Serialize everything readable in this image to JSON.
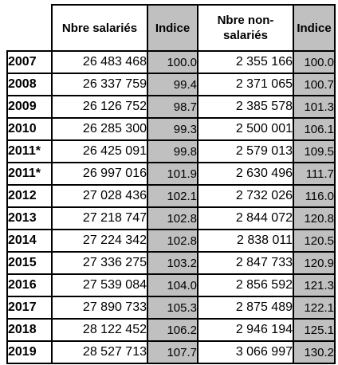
{
  "table": {
    "headers": {
      "year": "",
      "salaried": "Nbre salariés",
      "salaried_index": "Indice",
      "non_salaried": "Nbre non-salariés",
      "non_salaried_index": "Indice"
    },
    "rows": [
      {
        "year": "2007",
        "salaried": "26 483 468",
        "salaried_index": "100.0",
        "non_salaried": "2 355 166",
        "non_salaried_index": "100.0"
      },
      {
        "year": "2008",
        "salaried": "26 337 759",
        "salaried_index": "99.4",
        "non_salaried": "2 371 065",
        "non_salaried_index": "100.7"
      },
      {
        "year": "2009",
        "salaried": "26 126 752",
        "salaried_index": "98.7",
        "non_salaried": "2 385 578",
        "non_salaried_index": "101.3"
      },
      {
        "year": "2010",
        "salaried": "26 285 300",
        "salaried_index": "99.3",
        "non_salaried": "2 500 001",
        "non_salaried_index": "106.1"
      },
      {
        "year": "2011*",
        "salaried": "26 425 091",
        "salaried_index": "99.8",
        "non_salaried": "2 579 013",
        "non_salaried_index": "109.5"
      },
      {
        "year": "2011*",
        "salaried": "26 997 016",
        "salaried_index": "101.9",
        "non_salaried": "2 630 496",
        "non_salaried_index": "111.7"
      },
      {
        "year": "2012",
        "salaried": "27 028 436",
        "salaried_index": "102.1",
        "non_salaried": "2 732 026",
        "non_salaried_index": "116.0"
      },
      {
        "year": "2013",
        "salaried": "27 218 747",
        "salaried_index": "102.8",
        "non_salaried": "2 844 072",
        "non_salaried_index": "120.8"
      },
      {
        "year": "2014",
        "salaried": "27 224 342",
        "salaried_index": "102.8",
        "non_salaried": "2 838 011",
        "non_salaried_index": "120.5"
      },
      {
        "year": "2015",
        "salaried": "27 336 275",
        "salaried_index": "103.2",
        "non_salaried": "2 847 733",
        "non_salaried_index": "120.9"
      },
      {
        "year": "2016",
        "salaried": "27 539 084",
        "salaried_index": "104.0",
        "non_salaried": "2 856 592",
        "non_salaried_index": "121.3"
      },
      {
        "year": "2017",
        "salaried": "27 890 733",
        "salaried_index": "105.3",
        "non_salaried": "2 875 489",
        "non_salaried_index": "122.1"
      },
      {
        "year": "2018",
        "salaried": "28 122 452",
        "salaried_index": "106.2",
        "non_salaried": "2 946 194",
        "non_salaried_index": "125.1"
      },
      {
        "year": "2019",
        "salaried": "28 527 713",
        "salaried_index": "107.7",
        "non_salaried": "3 066 997",
        "non_salaried_index": "130.2"
      }
    ]
  }
}
